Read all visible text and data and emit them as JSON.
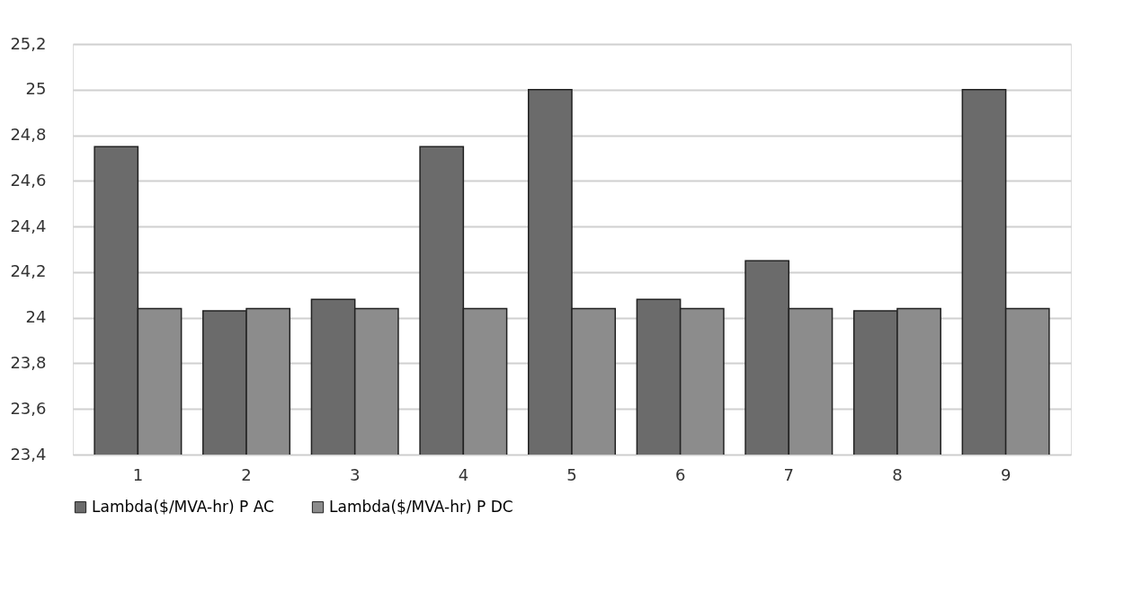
{
  "chart_data": {
    "type": "bar",
    "categories": [
      "1",
      "2",
      "3",
      "4",
      "5",
      "6",
      "7",
      "8",
      "9"
    ],
    "series": [
      {
        "name": "Lambda($/MVA-hr) P AC",
        "color": "#6b6b6b",
        "values": [
          24.75,
          24.03,
          24.08,
          24.75,
          25.0,
          24.08,
          24.25,
          24.03,
          25.0
        ]
      },
      {
        "name": "Lambda($/MVA-hr) P DC",
        "color": "#8c8c8c",
        "values": [
          24.04,
          24.04,
          24.04,
          24.04,
          24.04,
          24.04,
          24.04,
          24.04,
          24.04
        ]
      }
    ],
    "ylim": [
      23.4,
      25.2
    ],
    "yticks": [
      {
        "value": 23.4,
        "label": "23,4"
      },
      {
        "value": 23.6,
        "label": "23,6"
      },
      {
        "value": 23.8,
        "label": "23,8"
      },
      {
        "value": 24,
        "label": "24"
      },
      {
        "value": 24.2,
        "label": "24,2"
      },
      {
        "value": 24.4,
        "label": "24,4"
      },
      {
        "value": 24.6,
        "label": "24,6"
      },
      {
        "value": 24.8,
        "label": "24,8"
      },
      {
        "value": 25,
        "label": "25"
      },
      {
        "value": 25.2,
        "label": "25,2"
      }
    ],
    "grid": "y",
    "legend": "bottom"
  }
}
